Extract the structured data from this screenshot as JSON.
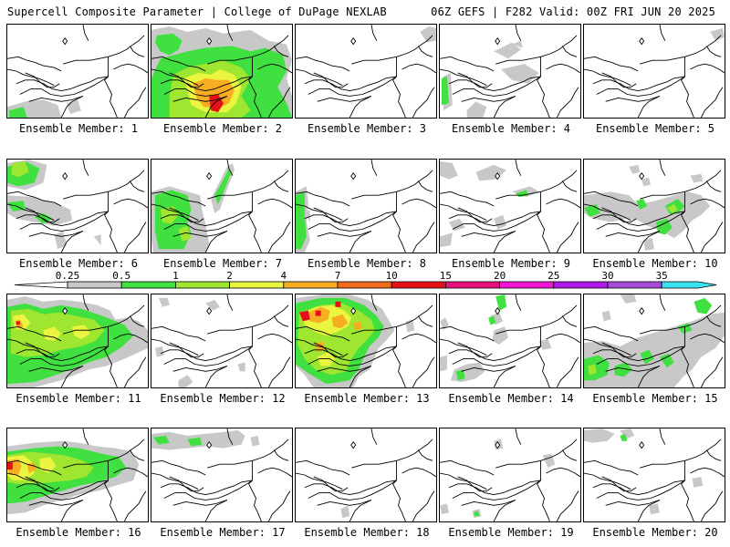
{
  "header": {
    "left": "Supercell Composite Parameter | College of DuPage NEXLAB",
    "right": "06Z GEFS | F282 Valid: 00Z FRI JUN 20 2025"
  },
  "caption_prefix": "Ensemble Member: ",
  "colorbar": {
    "labels": [
      "0.25",
      "0.5",
      "1",
      "2",
      "4",
      "7",
      "10",
      "15",
      "20",
      "25",
      "30",
      "35"
    ],
    "colors": [
      "#c8c8c8",
      "#3fe040",
      "#9ee62f",
      "#eaf53f",
      "#f6ad22",
      "#ef6a1c",
      "#e61019",
      "#e8107c",
      "#f116d6",
      "#b019e8",
      "#a44bd8",
      "#39e2ee"
    ]
  },
  "members": [
    {
      "id": 1,
      "label": "Ensemble Member: 1"
    },
    {
      "id": 2,
      "label": "Ensemble Member: 2"
    },
    {
      "id": 3,
      "label": "Ensemble Member: 3"
    },
    {
      "id": 4,
      "label": "Ensemble Member: 4"
    },
    {
      "id": 5,
      "label": "Ensemble Member: 5"
    },
    {
      "id": 6,
      "label": "Ensemble Member: 6"
    },
    {
      "id": 7,
      "label": "Ensemble Member: 7"
    },
    {
      "id": 8,
      "label": "Ensemble Member: 8"
    },
    {
      "id": 9,
      "label": "Ensemble Member: 9"
    },
    {
      "id": 10,
      "label": "Ensemble Member: 10"
    },
    {
      "id": 11,
      "label": "Ensemble Member: 11"
    },
    {
      "id": 12,
      "label": "Ensemble Member: 12"
    },
    {
      "id": 13,
      "label": "Ensemble Member: 13"
    },
    {
      "id": 14,
      "label": "Ensemble Member: 14"
    },
    {
      "id": 15,
      "label": "Ensemble Member: 15"
    },
    {
      "id": 16,
      "label": "Ensemble Member: 16"
    },
    {
      "id": 17,
      "label": "Ensemble Member: 17"
    },
    {
      "id": 18,
      "label": "Ensemble Member: 18"
    },
    {
      "id": 19,
      "label": "Ensemble Member: 19"
    },
    {
      "id": 20,
      "label": "Ensemble Member: 20"
    }
  ]
}
